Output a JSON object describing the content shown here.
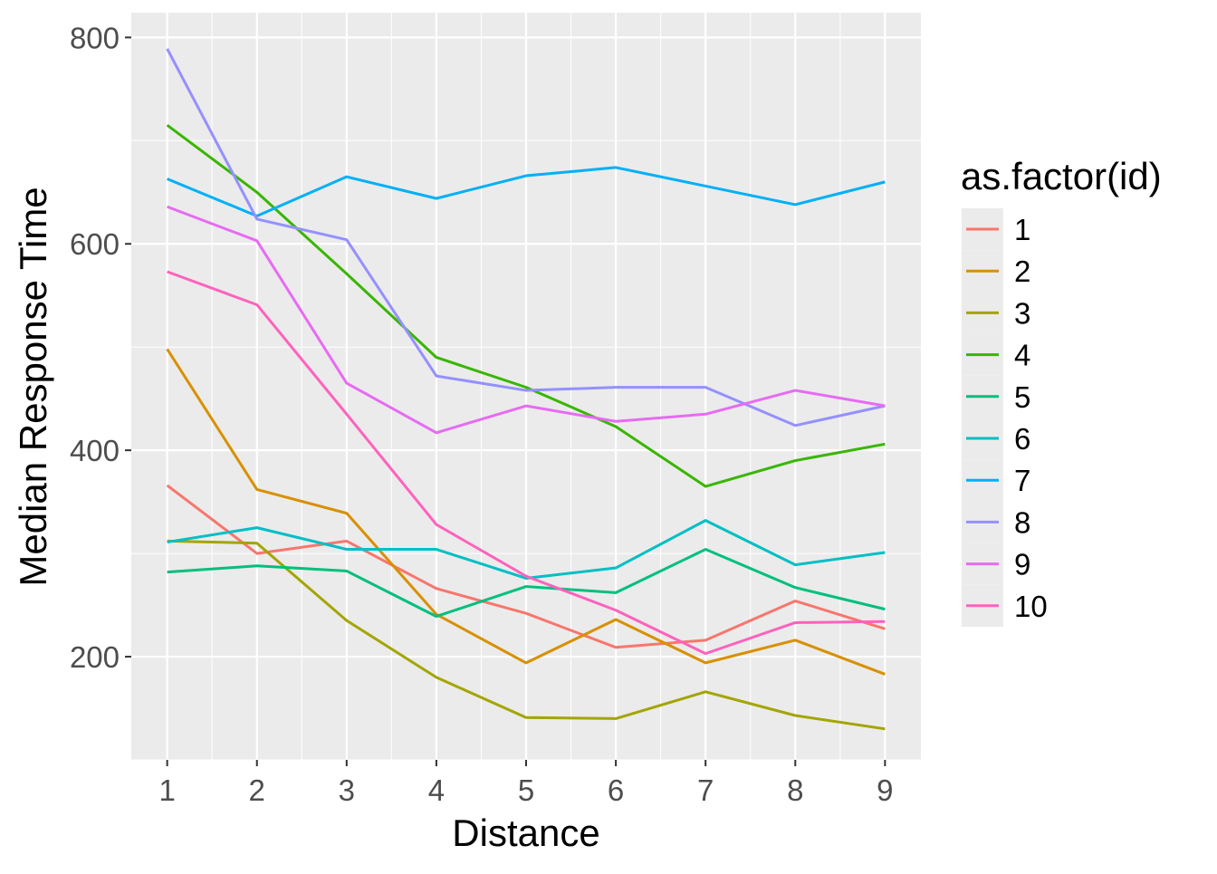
{
  "chart_data": {
    "type": "line",
    "title": "",
    "xlabel": "Distance",
    "ylabel": "Median Response Time",
    "xlim": [
      0.6,
      9.4
    ],
    "ylim": [
      100,
      824
    ],
    "x": [
      1,
      2,
      3,
      4,
      5,
      6,
      7,
      8,
      9
    ],
    "x_ticks": [
      "1",
      "2",
      "3",
      "4",
      "5",
      "6",
      "7",
      "8",
      "9"
    ],
    "y_ticks": [
      200,
      400,
      600,
      800
    ],
    "y_tick_labels": [
      "200",
      "400",
      "600",
      "800"
    ],
    "grid": true,
    "legend": {
      "title": "as.factor(id)",
      "placement": "right"
    },
    "series": [
      {
        "name": "1",
        "color": "#F8766D",
        "values": [
          366,
          300,
          312,
          266,
          242,
          209,
          216,
          254,
          227
        ]
      },
      {
        "name": "2",
        "color": "#D89000",
        "values": [
          498,
          362,
          339,
          241,
          194,
          236,
          194,
          216,
          183
        ]
      },
      {
        "name": "3",
        "color": "#A3A500",
        "values": [
          312,
          310,
          235,
          180,
          141,
          140,
          166,
          143,
          130
        ]
      },
      {
        "name": "4",
        "color": "#39B600",
        "values": [
          715,
          650,
          571,
          490,
          461,
          423,
          365,
          390,
          406
        ]
      },
      {
        "name": "5",
        "color": "#00BF7D",
        "values": [
          282,
          288,
          283,
          239,
          268,
          262,
          304,
          267,
          246
        ]
      },
      {
        "name": "6",
        "color": "#00BFC4",
        "values": [
          311,
          325,
          304,
          304,
          276,
          286,
          332,
          289,
          301
        ]
      },
      {
        "name": "7",
        "color": "#00B0F6",
        "values": [
          663,
          627,
          665,
          644,
          666,
          674,
          656,
          638,
          660
        ]
      },
      {
        "name": "8",
        "color": "#9590FF",
        "values": [
          789,
          624,
          604,
          472,
          458,
          461,
          461,
          424,
          443
        ]
      },
      {
        "name": "9",
        "color": "#E76BF3",
        "values": [
          636,
          603,
          465,
          417,
          443,
          428,
          435,
          458,
          443
        ]
      },
      {
        "name": "10",
        "color": "#FF62BC",
        "values": [
          573,
          541,
          435,
          328,
          278,
          245,
          203,
          233,
          234
        ]
      }
    ]
  }
}
